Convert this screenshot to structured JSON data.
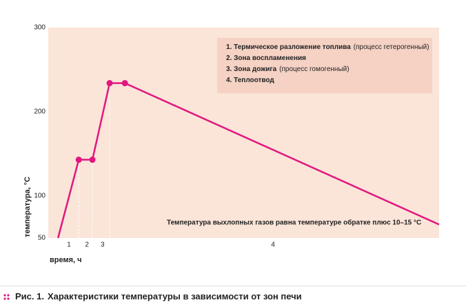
{
  "chart_data": {
    "type": "line",
    "y_label": "температура, °С",
    "x_label": "время, ч",
    "ylim": [
      50,
      300
    ],
    "yticks": [
      50,
      100,
      200,
      300
    ],
    "xlim": [
      0,
      100
    ],
    "x": [
      2.5,
      7.8,
      11.3,
      15.7,
      19.6,
      100
    ],
    "series": [
      {
        "color": "#e0177f",
        "values": [
          50,
          143,
          143,
          234,
          234,
          66
        ]
      }
    ],
    "zones": [
      {
        "label": "1",
        "x": 5.3
      },
      {
        "label": "2",
        "x": 9.9
      },
      {
        "label": "3",
        "x": 13.9
      },
      {
        "label": "4",
        "x": 57.5
      }
    ],
    "legend_items": [
      {
        "bold": "1. Термическое разложение топлива",
        "note": "(процесс гетерогенный)"
      },
      {
        "bold": "2. Зона воспламенения"
      },
      {
        "bold": "3. Зона дожига",
        "note": "(процесс гомогенный)"
      },
      {
        "bold": "4. Теплоотвод"
      }
    ],
    "annotation": "Температура выхлопных газов равна температуре обратке плюс 10–15 °С",
    "caption": {
      "prefix": "Рис. 1.",
      "text": "Характеристики температуры в зависимости от зон печи"
    }
  }
}
